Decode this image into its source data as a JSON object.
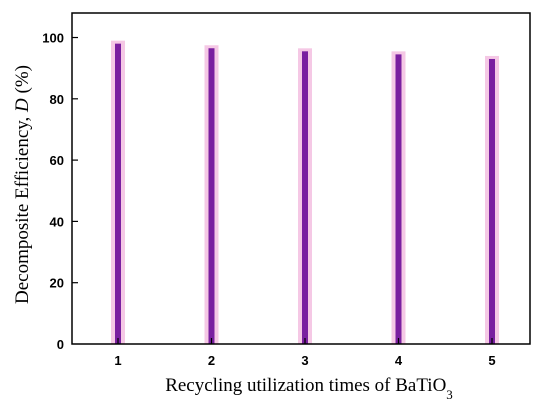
{
  "chart_data": {
    "type": "bar",
    "categories": [
      "1",
      "2",
      "3",
      "4",
      "5"
    ],
    "values": [
      98,
      96.5,
      95.5,
      94.5,
      93
    ],
    "xlabel_main": "Recycling utilization times of BaTiO",
    "xlabel_sub": "3",
    "ylabel_main": "Decomposite Efficiency, ",
    "ylabel_italic": "D",
    "ylabel_unit": " (%)",
    "yticks": [
      "0",
      "20",
      "40",
      "60",
      "80",
      "100"
    ],
    "ylim": [
      0,
      108
    ],
    "bar_color": "#7a1fa0",
    "bar_glow_color": "#f2b6dc",
    "grid": false,
    "legend": "none"
  }
}
